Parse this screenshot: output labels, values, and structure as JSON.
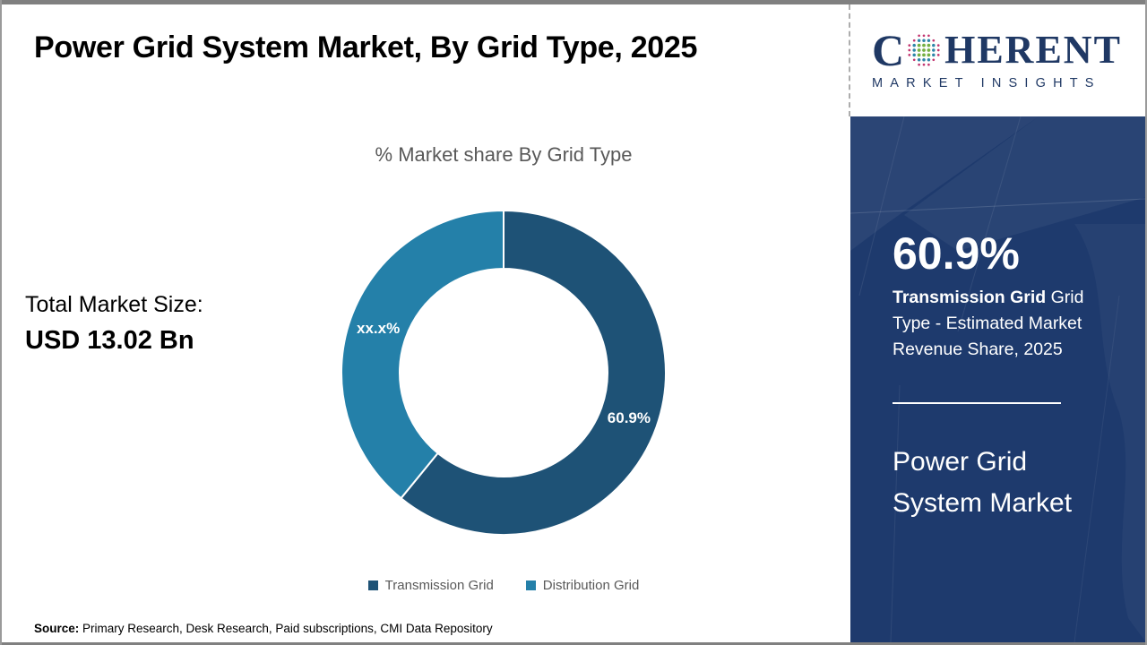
{
  "header": {
    "title": "Power Grid System Market, By Grid Type, 2025",
    "logo": {
      "brand_c": "C",
      "brand_rest": "HERENT",
      "tagline": "MARKET INSIGHTS"
    }
  },
  "chart": {
    "title": "% Market share By Grid Type",
    "total_label": "Total Market Size:",
    "total_value": "USD 13.02 Bn"
  },
  "chart_data": {
    "type": "pie",
    "donut": true,
    "title": "% Market share By Grid Type",
    "start_angle_deg": 0,
    "direction": "clockwise",
    "legend_position": "bottom",
    "series": [
      {
        "name": "Transmission Grid",
        "value": 60.9,
        "label": "60.9%",
        "color": "#1e5276"
      },
      {
        "name": "Distribution Grid",
        "value": 39.1,
        "label": "xx.x%",
        "color": "#2480a9"
      }
    ]
  },
  "sidebar": {
    "stat_value": "60.9%",
    "stat_highlight": "Transmission Grid",
    "stat_rest": " Grid Type - Estimated Market Revenue Share, 2025",
    "report_title": "Power Grid System Market"
  },
  "footer": {
    "source_label": "Source:",
    "source_text": " Primary Research, Desk Research, Paid subscriptions, CMI Data Repository"
  },
  "colors": {
    "sidebar_bg": "#1e3a6d",
    "brand_navy": "#1f3864",
    "title_text": "#000000",
    "muted_text": "#595959",
    "dot_green": "#76b043",
    "dot_teal": "#2e86a8",
    "dot_pink": "#c2356f"
  }
}
